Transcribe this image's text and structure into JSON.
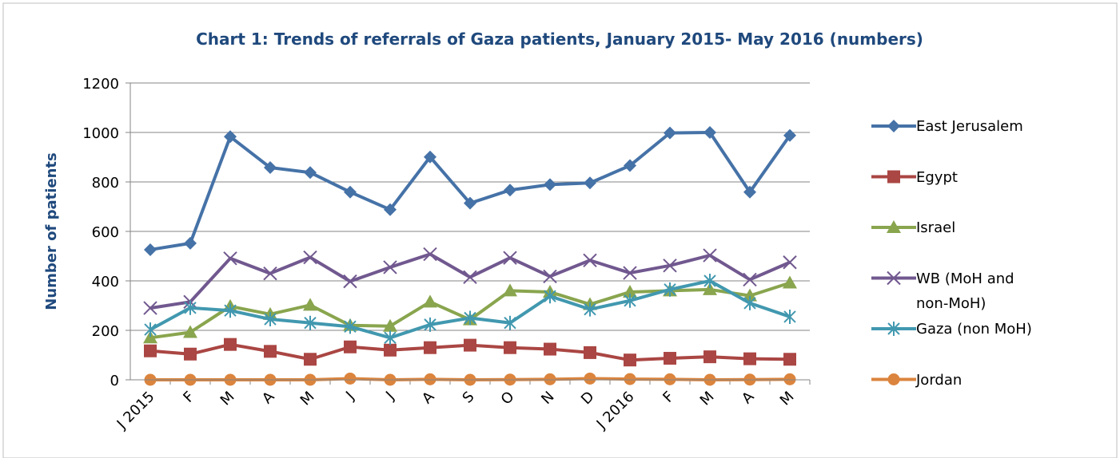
{
  "chart_data": {
    "type": "line",
    "title": "Chart 1: Trends of referrals of Gaza patients,  January 2015- May 2016 (numbers)",
    "y_label": "Number of patients",
    "categories": [
      "J 2015",
      "F",
      "M",
      "A",
      "M",
      "J",
      "J",
      "A",
      "S",
      "O",
      "N",
      "D",
      "J 2016",
      "F",
      "M",
      "A",
      "M"
    ],
    "series": [
      {
        "name": "East Jerusalem",
        "color": "#4572a7",
        "marker": "diamond",
        "values": [
          526,
          552,
          983,
          858,
          838,
          759,
          688,
          901,
          714,
          767,
          789,
          796,
          866,
          998,
          1000,
          759,
          988
        ]
      },
      {
        "name": "Egypt",
        "color": "#aa4643",
        "marker": "square",
        "values": [
          117,
          104,
          143,
          115,
          83,
          133,
          120,
          130,
          140,
          130,
          124,
          110,
          80,
          87,
          93,
          85,
          83
        ]
      },
      {
        "name": "Israel",
        "color": "#89a54e",
        "marker": "triangle",
        "values": [
          170,
          192,
          297,
          265,
          302,
          220,
          217,
          315,
          243,
          360,
          355,
          305,
          355,
          360,
          365,
          340,
          392
        ]
      },
      {
        "name": "WB (MoH and non-MoH)",
        "color": "#71588f",
        "marker": "x",
        "values": [
          290,
          315,
          491,
          430,
          495,
          398,
          455,
          508,
          415,
          493,
          418,
          483,
          432,
          462,
          503,
          405,
          475
        ]
      },
      {
        "name": "Gaza (non MoH)",
        "color": "#4198af",
        "marker": "star",
        "values": [
          203,
          291,
          280,
          245,
          230,
          215,
          170,
          223,
          250,
          230,
          338,
          285,
          320,
          365,
          400,
          310,
          255
        ]
      },
      {
        "name": "Jordan",
        "color": "#db843d",
        "marker": "circle",
        "values": [
          0,
          0,
          0,
          0,
          0,
          5,
          0,
          2,
          0,
          1,
          2,
          5,
          3,
          2,
          0,
          1,
          2
        ]
      }
    ],
    "ylim": [
      0,
      1200
    ],
    "yticks": [
      0,
      200,
      400,
      600,
      800,
      1000,
      1200
    ],
    "grid": true,
    "legend": "right"
  }
}
